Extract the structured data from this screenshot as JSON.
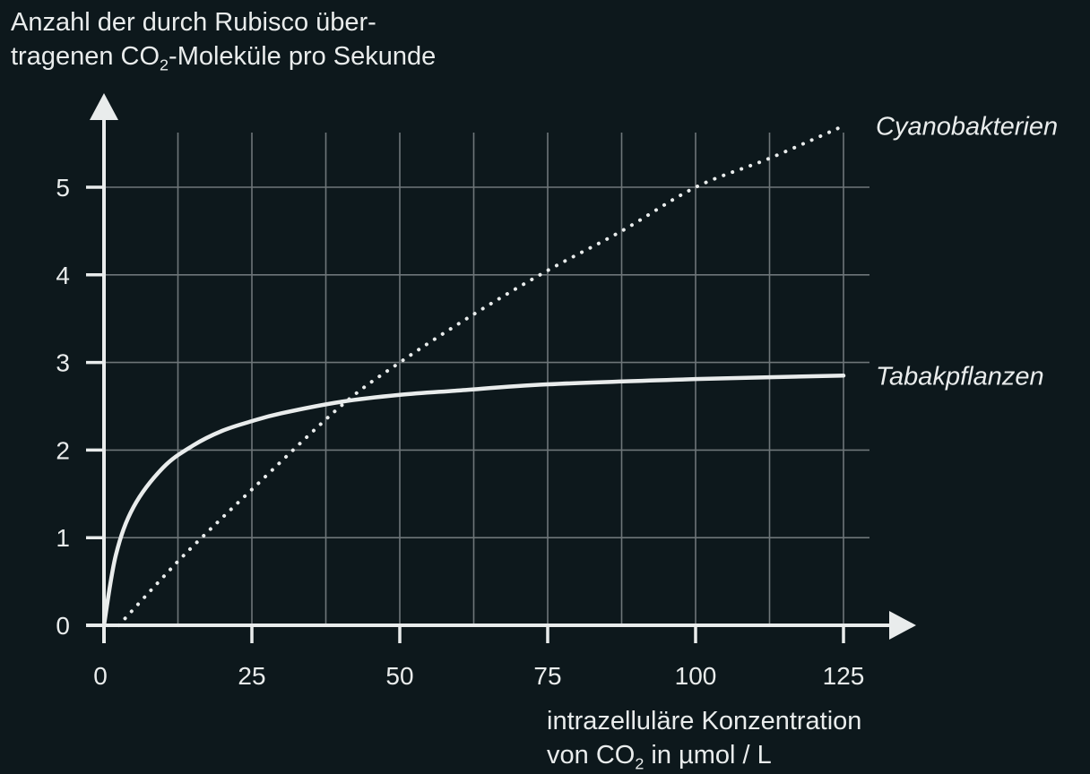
{
  "colors": {
    "background": "#0d181c",
    "foreground": "#e9ecec",
    "grid": "#6e7679"
  },
  "labels": {
    "ylabel_line1": "Anzahl der durch Rubisco über-",
    "ylabel_line2_pre": "tragenen CO",
    "ylabel_line2_sub": "2",
    "ylabel_line2_post": "-Moleküle pro Sekunde",
    "xlabel_line1": "intrazelluläre Konzentration",
    "xlabel_line2_pre": "von CO",
    "xlabel_line2_sub": "2",
    "xlabel_line2_post": " in µmol / L"
  },
  "chart_data": {
    "type": "line",
    "xlabel": "intrazelluläre Konzentration von CO2 in µmol / L",
    "ylabel": "Anzahl der durch Rubisco übertragenen CO2-Moleküle pro Sekunde",
    "xlim": [
      0,
      125
    ],
    "ylim": [
      0,
      5.5
    ],
    "xticks": [
      0,
      25,
      50,
      75,
      100,
      125
    ],
    "yticks": [
      0,
      1,
      2,
      3,
      4,
      5
    ],
    "grid": true,
    "series": [
      {
        "name": "Tabakpflanzen",
        "style": "solid",
        "x": [
          0,
          2,
          5,
          10,
          15,
          20,
          25,
          30,
          40,
          50,
          60,
          75,
          100,
          125
        ],
        "y": [
          0,
          0.8,
          1.35,
          1.8,
          2.05,
          2.22,
          2.33,
          2.42,
          2.55,
          2.63,
          2.68,
          2.75,
          2.81,
          2.85
        ]
      },
      {
        "name": "Cyanobakterien",
        "style": "dotted",
        "x": [
          2.5,
          10,
          15,
          25,
          40,
          50,
          62.5,
          75,
          87.5,
          100,
          112.5,
          125
        ],
        "y": [
          0,
          0.55,
          0.9,
          1.55,
          2.5,
          3.0,
          3.55,
          4.05,
          4.5,
          5.0,
          5.33,
          5.7
        ]
      }
    ]
  }
}
